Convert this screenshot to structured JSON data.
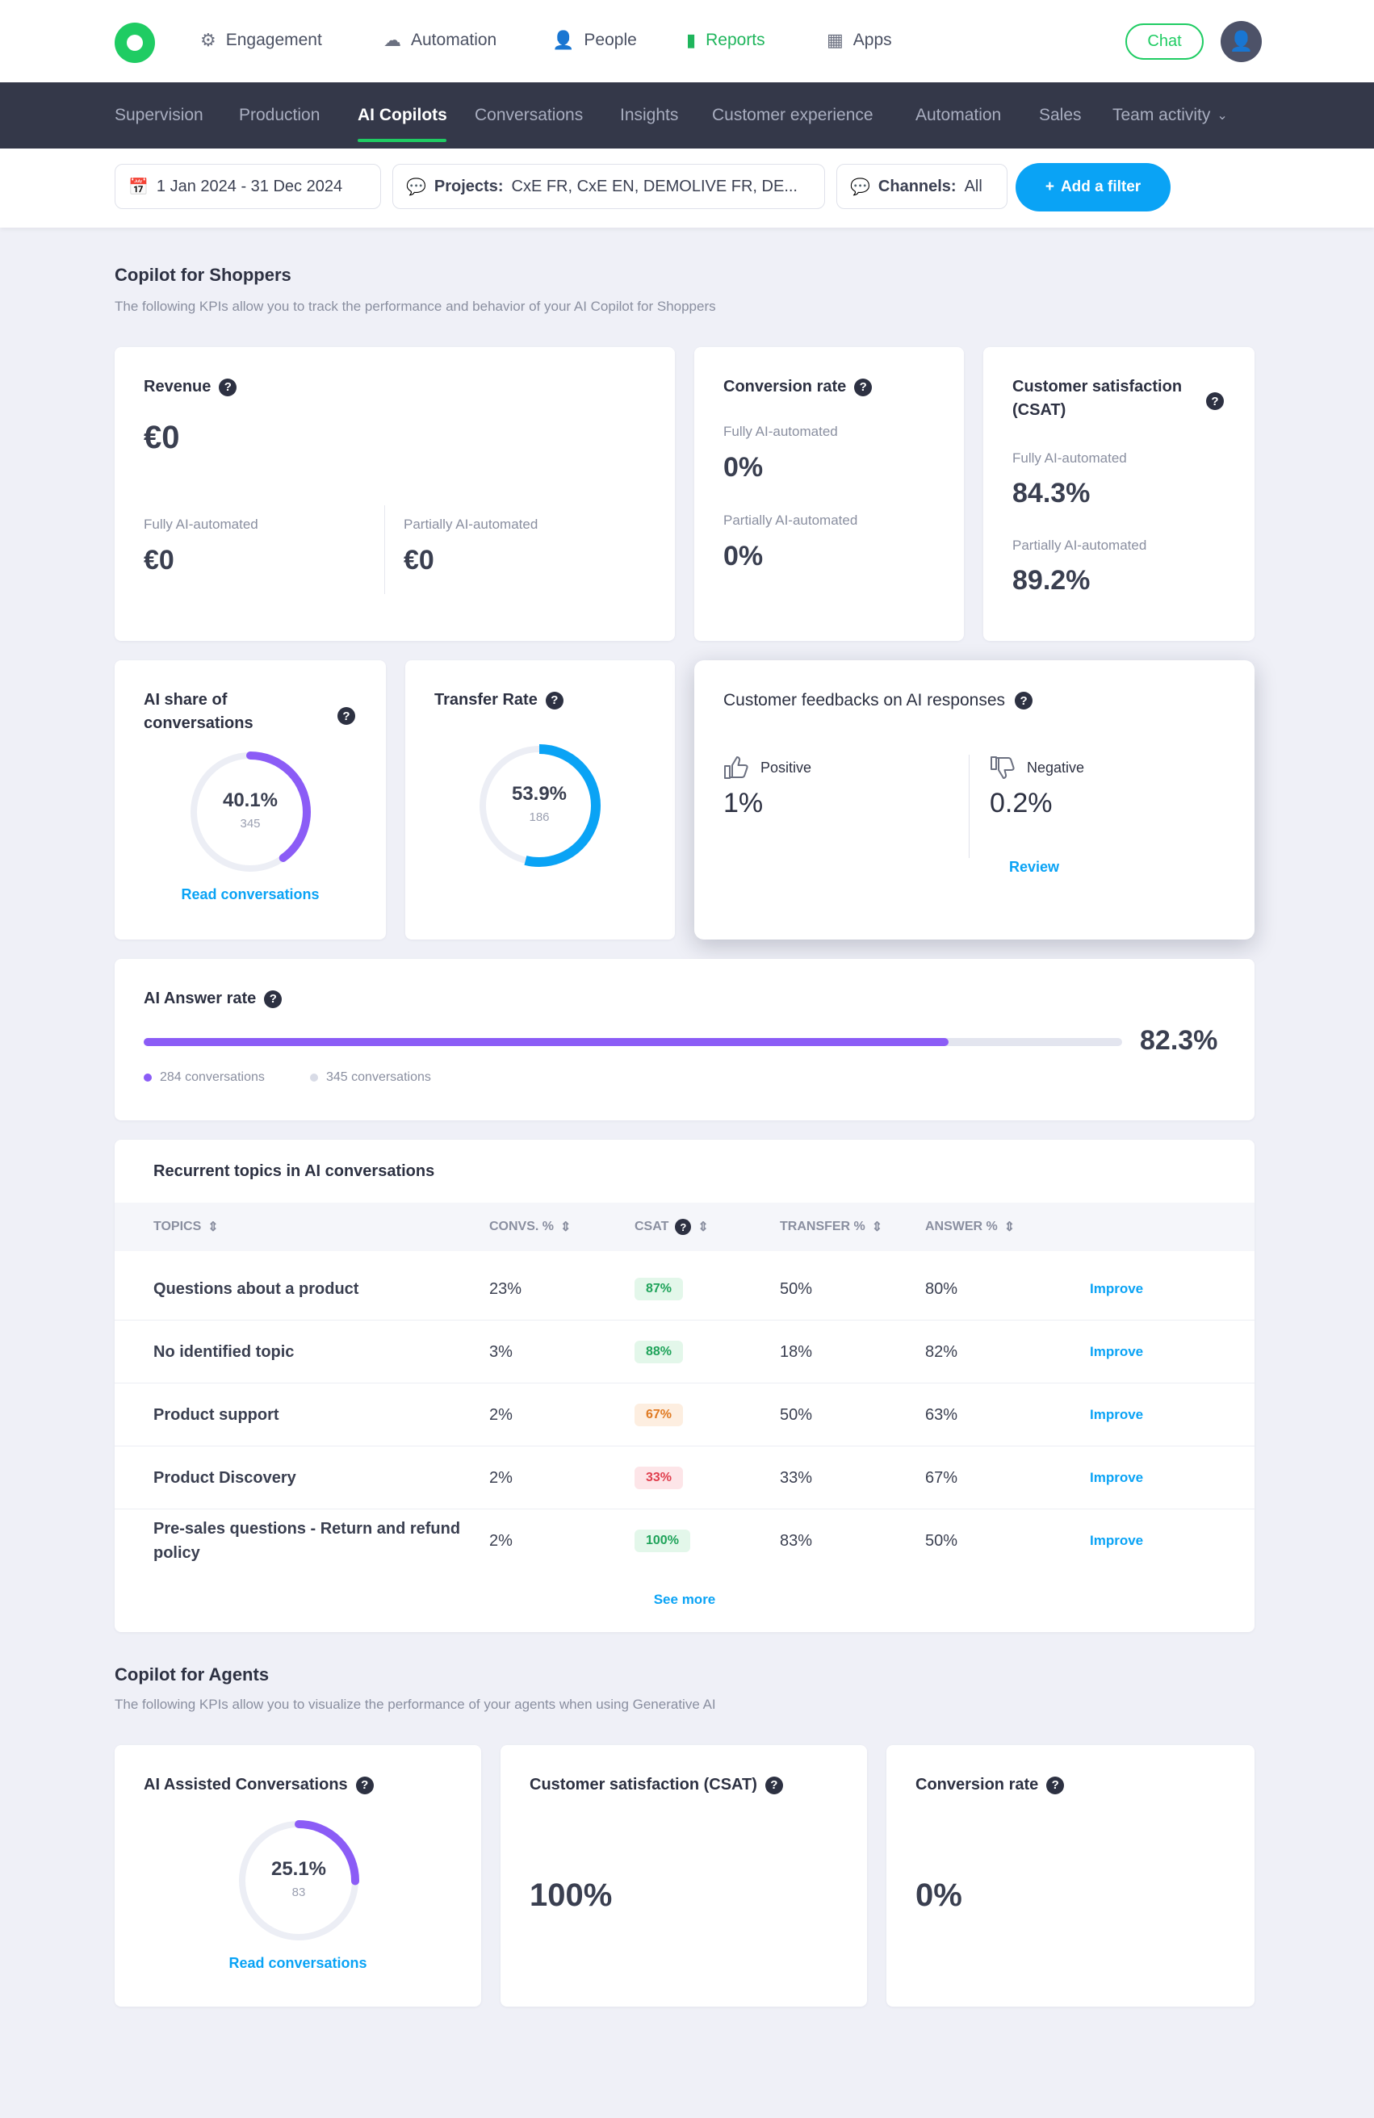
{
  "topnav": {
    "items": [
      {
        "label": "Engagement",
        "icon": "gear-icon"
      },
      {
        "label": "Automation",
        "icon": "cloud-icon"
      },
      {
        "label": "People",
        "icon": "person-icon"
      },
      {
        "label": "Reports",
        "icon": "bar-chart-icon",
        "active": true
      },
      {
        "label": "Apps",
        "icon": "grid-icon"
      }
    ],
    "chat_label": "Chat",
    "avatar_initial": "👤"
  },
  "subnav": {
    "items": [
      "Supervision",
      "Production",
      "AI Copilots",
      "Conversations",
      "Insights",
      "Customer experience",
      "Automation",
      "Sales",
      "Team activity"
    ],
    "active": "AI Copilots"
  },
  "filters": {
    "date": "1 Jan 2024 - 31 Dec 2024",
    "projects_label": "Projects:",
    "projects_value": "CxE FR, CxE EN, DEMOLIVE FR, DE...",
    "channels_label": "Channels:",
    "channels_value": "All",
    "add_filter": "Add a filter"
  },
  "shoppers": {
    "title": "Copilot for Shoppers",
    "subtitle": "The following KPIs allow you to track the performance and behavior of your AI Copilot for Shoppers",
    "revenue": {
      "title": "Revenue",
      "value": "€0",
      "fully_label": "Fully AI-automated",
      "fully_value": "€0",
      "partially_label": "Partially AI-automated",
      "partially_value": "€0"
    },
    "conversion": {
      "title": "Conversion rate",
      "fully_label": "Fully AI-automated",
      "fully_value": "0%",
      "partially_label": "Partially AI-automated",
      "partially_value": "0%"
    },
    "csat": {
      "title_line1": "Customer satisfaction",
      "title_line2": "(CSAT)",
      "fully_label": "Fully AI-automated",
      "fully_value": "84.3%",
      "partially_label": "Partially AI-automated",
      "partially_value": "89.2%"
    },
    "ai_share": {
      "title_line1": "AI share of",
      "title_line2": "conversations",
      "value": "40.1%",
      "count": "345",
      "fraction": 0.401,
      "link": "Read conversations"
    },
    "transfer": {
      "title": "Transfer Rate",
      "value": "53.9%",
      "count": "186",
      "fraction": 0.539
    },
    "feedback": {
      "title": "Customer feedbacks on AI responses",
      "positive_label": "Positive",
      "positive_value": "1%",
      "negative_label": "Negative",
      "negative_value": "0.2%",
      "review": "Review"
    },
    "answer_rate": {
      "title": "AI Answer rate",
      "value": "82.3%",
      "fraction": 0.823,
      "legend_a": "284 conversations",
      "legend_b": "345 conversations"
    },
    "topics": {
      "title": "Recurrent topics in AI conversations",
      "headers": [
        "TOPICS",
        "CONVS. %",
        "CSAT",
        "TRANSFER %",
        "ANSWER %"
      ],
      "rows": [
        {
          "topic": "Questions about a product",
          "convs": "23%",
          "csat": "87%",
          "csat_tone": "green",
          "transfer": "50%",
          "answer": "80%",
          "action": "Improve"
        },
        {
          "topic": "No identified topic",
          "convs": "3%",
          "csat": "88%",
          "csat_tone": "green",
          "transfer": "18%",
          "answer": "82%",
          "action": "Improve"
        },
        {
          "topic": "Product support",
          "convs": "2%",
          "csat": "67%",
          "csat_tone": "orange",
          "transfer": "50%",
          "answer": "63%",
          "action": "Improve"
        },
        {
          "topic": "Product Discovery",
          "convs": "2%",
          "csat": "33%",
          "csat_tone": "red",
          "transfer": "33%",
          "answer": "67%",
          "action": "Improve"
        },
        {
          "topic": "Pre-sales questions - Return and refund policy",
          "convs": "2%",
          "csat": "100%",
          "csat_tone": "green",
          "transfer": "83%",
          "answer": "50%",
          "action": "Improve"
        }
      ],
      "see_more": "See more"
    }
  },
  "agents": {
    "title": "Copilot for Agents",
    "subtitle": "The following KPIs allow you to visualize the performance of your agents when using Generative AI",
    "assisted": {
      "title": "AI Assisted Conversations",
      "value": "25.1%",
      "count": "83",
      "fraction": 0.251,
      "link": "Read conversations"
    },
    "csat": {
      "title": "Customer satisfaction (CSAT)",
      "value": "100%"
    },
    "conversion": {
      "title": "Conversion rate",
      "value": "0%"
    }
  },
  "colors": {
    "brand_green": "#1fcc63",
    "accent_blue": "#0aa3f5",
    "purple": "#8b5cf6",
    "dark_nav": "#343849"
  }
}
